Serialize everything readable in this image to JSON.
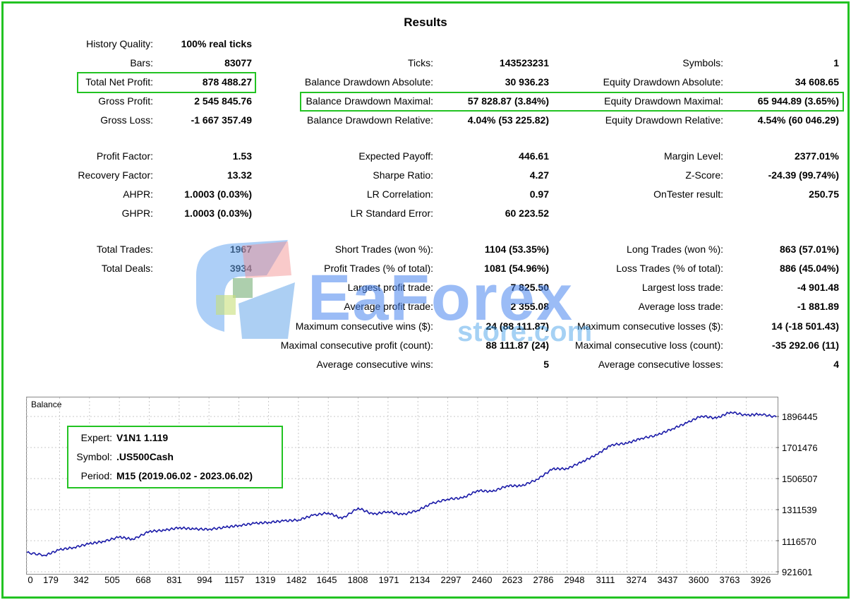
{
  "title": "Results",
  "col1": [
    {
      "label": "History Quality:",
      "value": "100% real ticks"
    },
    {
      "label": "Bars:",
      "value": "83077"
    },
    {
      "label": "Total Net Profit:",
      "value": "878 488.27"
    },
    {
      "label": "Gross Profit:",
      "value": "2 545 845.76"
    },
    {
      "label": "Gross Loss:",
      "value": "-1 667 357.49"
    },
    {
      "label": "Profit Factor:",
      "value": "1.53"
    },
    {
      "label": "Recovery Factor:",
      "value": "13.32"
    },
    {
      "label": "AHPR:",
      "value": "1.0003 (0.03%)"
    },
    {
      "label": "GHPR:",
      "value": "1.0003 (0.03%)"
    },
    {
      "label": "Total Trades:",
      "value": "1967"
    },
    {
      "label": "Total Deals:",
      "value": "3934"
    }
  ],
  "col2": [
    {
      "label": "Ticks:",
      "value": "143523231"
    },
    {
      "label": "Balance Drawdown Absolute:",
      "value": "30 936.23"
    },
    {
      "label": "Balance Drawdown Maximal:",
      "value": "57 828.87 (3.84%)"
    },
    {
      "label": "Balance Drawdown Relative:",
      "value": "4.04% (53 225.82)"
    },
    {
      "label": "Expected Payoff:",
      "value": "446.61"
    },
    {
      "label": "Sharpe Ratio:",
      "value": "4.27"
    },
    {
      "label": "LR Correlation:",
      "value": "0.97"
    },
    {
      "label": "LR Standard Error:",
      "value": "60 223.52"
    },
    {
      "label": "Short Trades (won %):",
      "value": "1104 (53.35%)"
    },
    {
      "label": "Profit Trades (% of total):",
      "value": "1081 (54.96%)"
    },
    {
      "label": "Largest profit trade:",
      "value": "7 825.50"
    },
    {
      "label": "Average profit trade:",
      "value": "2 355.08"
    },
    {
      "label": "Maximum consecutive wins ($):",
      "value": "24 (88 111.87)"
    },
    {
      "label": "Maximal consecutive profit (count):",
      "value": "88 111.87 (24)"
    },
    {
      "label": "Average consecutive wins:",
      "value": "5"
    }
  ],
  "col3": [
    {
      "label": "Symbols:",
      "value": "1"
    },
    {
      "label": "Equity Drawdown Absolute:",
      "value": "34 608.65"
    },
    {
      "label": "Equity Drawdown Maximal:",
      "value": "65 944.89 (3.65%)"
    },
    {
      "label": "Equity Drawdown Relative:",
      "value": "4.54% (60 046.29)"
    },
    {
      "label": "Margin Level:",
      "value": "2377.01%"
    },
    {
      "label": "Z-Score:",
      "value": "-24.39 (99.74%)"
    },
    {
      "label": "OnTester result:",
      "value": "250.75"
    },
    {
      "label": "Long Trades (won %):",
      "value": "863 (57.01%)"
    },
    {
      "label": "Loss Trades (% of total):",
      "value": "886 (45.04%)"
    },
    {
      "label": "Largest loss trade:",
      "value": "-4 901.48"
    },
    {
      "label": "Average loss trade:",
      "value": "-1 881.89"
    },
    {
      "label": "Maximum consecutive losses ($):",
      "value": "14 (-18 501.43)"
    },
    {
      "label": "Maximal consecutive loss (count):",
      "value": "-35 292.06 (11)"
    },
    {
      "label": "Average consecutive losses:",
      "value": "4"
    }
  ],
  "watermark": {
    "brand": "EaForex",
    "sub": "store.com"
  },
  "chart_data": {
    "type": "line",
    "title": "Balance",
    "x_ticks": [
      "0",
      "179",
      "342",
      "505",
      "668",
      "831",
      "994",
      "1157",
      "1319",
      "1482",
      "1645",
      "1808",
      "1971",
      "2134",
      "2297",
      "2460",
      "2623",
      "2786",
      "2948",
      "3111",
      "3274",
      "3437",
      "3600",
      "3763",
      "3926"
    ],
    "y_ticks": [
      "1896445",
      "1701476",
      "1506507",
      "1311539",
      "1116570",
      "921601"
    ],
    "ylim": [
      921601,
      1896445
    ],
    "xlim": [
      0,
      4089
    ],
    "grid": true,
    "line_color": "#1a1aa8",
    "series": [
      {
        "x": [
          0,
          100,
          179,
          260,
          342,
          420,
          505,
          580,
          668,
          750,
          831,
          910,
          994,
          1080,
          1157,
          1240,
          1319,
          1400,
          1482,
          1560,
          1645,
          1720,
          1808,
          1890,
          1971,
          2050,
          2134,
          2210,
          2297,
          2380,
          2460,
          2540,
          2623,
          2700,
          2786,
          2870,
          2948,
          3030,
          3111,
          3190,
          3274,
          3350,
          3437,
          3520,
          3600,
          3680,
          3763,
          3840,
          3926,
          4000,
          4089
        ],
        "y": [
          1042000,
          1025000,
          1060000,
          1075000,
          1098000,
          1112000,
          1140000,
          1125000,
          1175000,
          1182000,
          1198000,
          1190000,
          1188000,
          1200000,
          1212000,
          1225000,
          1232000,
          1240000,
          1247000,
          1275000,
          1292000,
          1255000,
          1322000,
          1282000,
          1300000,
          1280000,
          1308000,
          1350000,
          1378000,
          1385000,
          1432000,
          1425000,
          1462000,
          1460000,
          1502000,
          1568000,
          1568000,
          1612000,
          1658000,
          1718000,
          1728000,
          1758000,
          1778000,
          1818000,
          1855000,
          1900000,
          1885000,
          1925000,
          1903000,
          1912000,
          1893000
        ]
      }
    ]
  },
  "legend": [
    {
      "label": "Expert:",
      "value": "V1N1 1.119"
    },
    {
      "label": "Symbol:",
      "value": ".US500Cash"
    },
    {
      "label": "Period:",
      "value": "M15 (2019.06.02 - 2023.06.02)"
    }
  ]
}
